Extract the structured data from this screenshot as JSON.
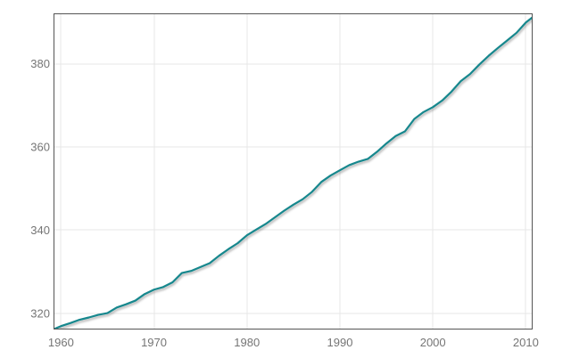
{
  "chart_data": {
    "type": "line",
    "title": "",
    "xlabel": "",
    "ylabel": "",
    "grid": true,
    "legend": "none",
    "xlim": [
      1959.2,
      2010.73
    ],
    "ylim": [
      316.1,
      392.1
    ],
    "x_ticks": [
      1960,
      1970,
      1980,
      1990,
      2000,
      2010
    ],
    "y_ticks": [
      320,
      340,
      360,
      380
    ],
    "x": [
      1959,
      1960,
      1961,
      1962,
      1963,
      1964,
      1965,
      1966,
      1967,
      1968,
      1969,
      1970,
      1971,
      1972,
      1973,
      1974,
      1975,
      1976,
      1977,
      1978,
      1979,
      1980,
      1981,
      1982,
      1983,
      1984,
      1985,
      1986,
      1987,
      1988,
      1989,
      1990,
      1991,
      1992,
      1993,
      1994,
      1995,
      1996,
      1997,
      1998,
      1999,
      2000,
      2001,
      2002,
      2003,
      2004,
      2005,
      2006,
      2007,
      2008,
      2009,
      2010,
      2011
    ],
    "values": [
      315.97,
      316.91,
      317.64,
      318.45,
      318.99,
      319.62,
      320.04,
      321.38,
      322.16,
      323.04,
      324.62,
      325.68,
      326.32,
      327.45,
      329.68,
      330.18,
      331.11,
      332.04,
      333.83,
      335.4,
      336.84,
      338.75,
      340.11,
      341.45,
      343.05,
      344.65,
      346.12,
      347.42,
      349.19,
      351.57,
      353.12,
      354.39,
      355.61,
      356.45,
      357.1,
      358.83,
      360.82,
      362.61,
      363.73,
      366.7,
      368.38,
      369.55,
      371.14,
      373.28,
      375.8,
      377.52,
      379.8,
      381.9,
      383.79,
      385.6,
      387.43,
      389.9,
      391.65
    ],
    "colors": {
      "line": "#17878d",
      "grid": "#e7e7e7",
      "border": "#555555",
      "tick_label": "#757575",
      "background": "#ffffff",
      "line_shadow": "rgba(0,0,0,0.35)"
    }
  }
}
